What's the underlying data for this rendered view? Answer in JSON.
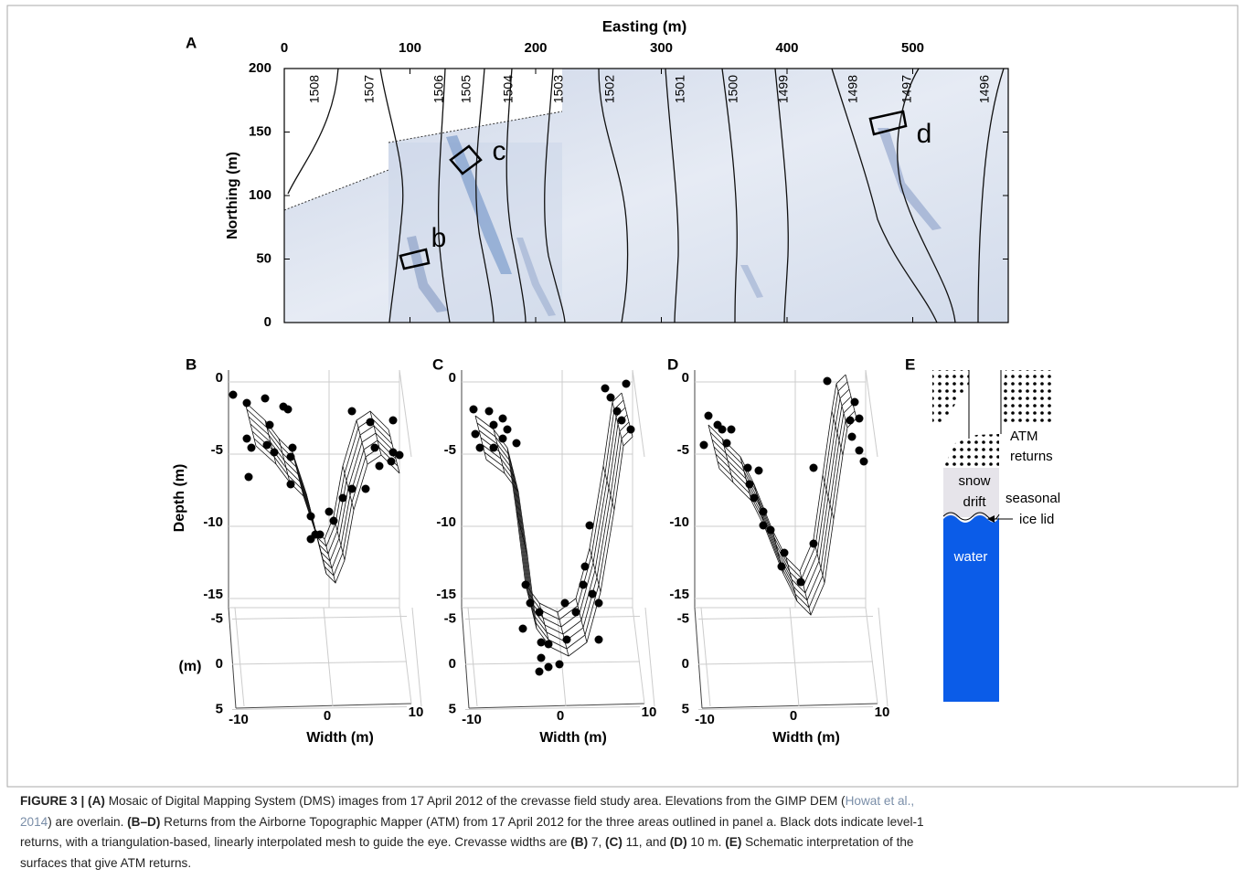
{
  "panel_a": {
    "label": "A",
    "x_axis_title": "Easting (m)",
    "y_axis_title": "Northing (m)",
    "xlim": [
      0,
      576
    ],
    "ylim": [
      0,
      200
    ],
    "xticks": [
      0,
      100,
      200,
      300,
      400,
      500
    ],
    "yticks": [
      0,
      50,
      100,
      150,
      200
    ],
    "contour_labels": [
      "1508",
      "1507",
      "1506",
      "1505",
      "1504",
      "1503",
      "1502",
      "1501",
      "1500",
      "1499",
      "1498",
      "1497",
      "1496"
    ],
    "box_labels": [
      "b",
      "c",
      "d"
    ]
  },
  "panels_3d": [
    {
      "label": "B",
      "depth_title": "Depth (m)",
      "y_title": "(m)",
      "depth_ticks": [
        0,
        -5,
        -10,
        -15
      ],
      "y_ticks": [
        -5,
        0,
        5
      ],
      "width_ticks": [
        -10,
        0,
        10
      ],
      "x_axis_title": "Width (m)"
    },
    {
      "label": "C",
      "depth_ticks": [
        0,
        -5,
        -10,
        -15
      ],
      "y_ticks": [
        -5,
        0,
        5
      ],
      "width_ticks": [
        -10,
        0,
        10
      ],
      "x_axis_title": "Width (m)"
    },
    {
      "label": "D",
      "depth_ticks": [
        0,
        -5,
        -10,
        -15
      ],
      "y_ticks": [
        -5,
        0,
        5
      ],
      "width_ticks": [
        -10,
        0,
        10
      ],
      "x_axis_title": "Width (m)"
    }
  ],
  "panel_e": {
    "label": "E",
    "atm_1": "ATM",
    "atm_2": "returns",
    "snow_1": "snow",
    "snow_2": "drift",
    "lid_1": "seasonal",
    "lid_2": "ice lid",
    "water": "water"
  },
  "caption": {
    "segments": [
      "FIGURE 3 | (A)",
      " Mosaic of Digital Mapping System (DMS) images from 17 April 2012 of the crevasse field study area. Elevations from the GIMP DEM (",
      "Howat et al.,",
      "2014",
      ") are overlain. ",
      "(B–D)",
      " Returns from the Airborne Topographic Mapper (ATM) from 17 April 2012 for the three areas outlined in panel a. Black dots indicate level-1",
      "returns, with a triangulation-based, linearly interpolated mesh to guide the eye. Crevasse widths are ",
      "(B)",
      " 7, ",
      "(C)",
      " 11, and ",
      "(D)",
      " 10 m. ",
      "(E)",
      " Schematic interpretation of the",
      "surfaces that give ATM returns."
    ]
  }
}
